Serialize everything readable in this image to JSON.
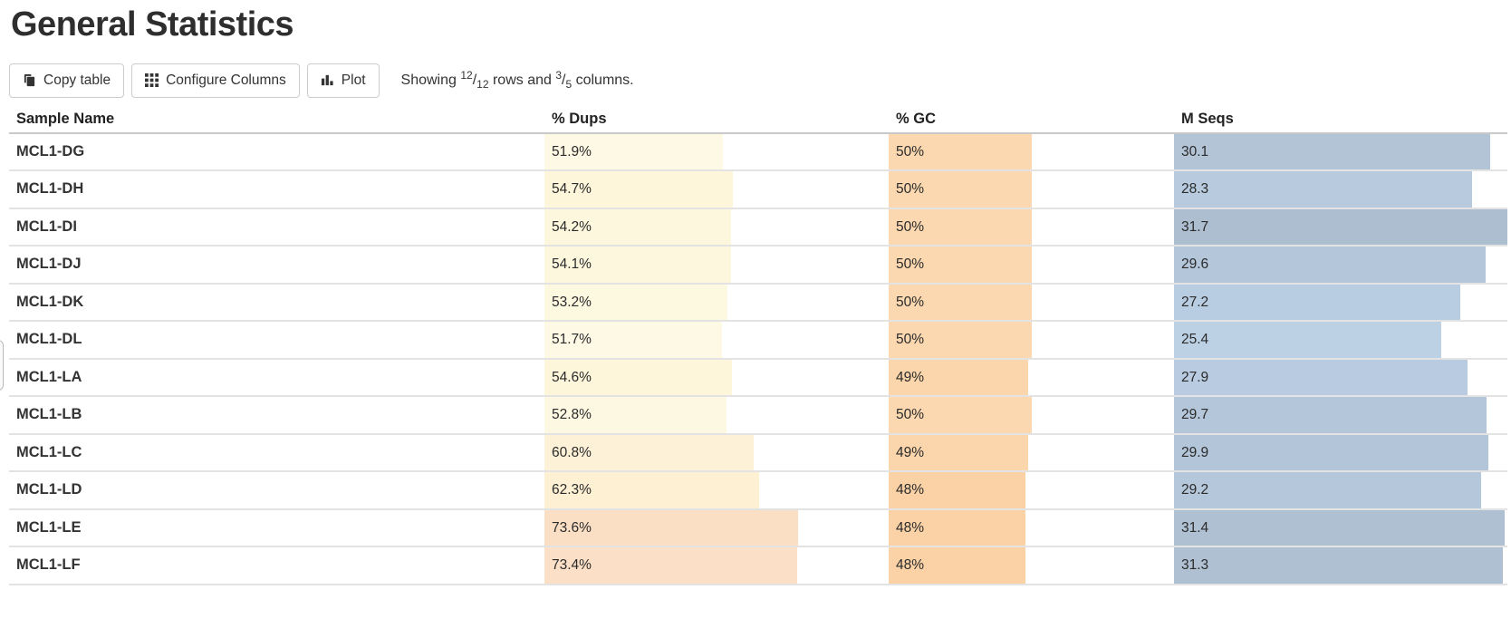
{
  "page": {
    "title": "General Statistics"
  },
  "toolbar": {
    "copy_label": "Copy table",
    "configure_label": "Configure Columns",
    "plot_label": "Plot",
    "showing": {
      "prefix": "Showing ",
      "rows_shown": "12",
      "rows_total": "12",
      "middle": " rows and ",
      "cols_shown": "3",
      "cols_total": "5",
      "suffix": " columns.",
      "slash": "/"
    }
  },
  "colors": {
    "dups_scale_low": "#fdf9e5",
    "dups_scale_high": "#fbdfc5",
    "gc_bar": "#fbd8b0",
    "seqs_bar": "#b3c4d7",
    "row_border": "#e3e3e3",
    "header_border": "#c9c9c9"
  },
  "table": {
    "columns": [
      "Sample Name",
      "% Dups",
      "% GC",
      "M Seqs"
    ],
    "seqs_axis_max": 31.7,
    "rows": [
      {
        "sample": "MCL1-DG",
        "dups": {
          "text": "51.9%",
          "pct": 51.9,
          "color": "#fdf9e4"
        },
        "gc": {
          "text": "50%",
          "pct": 50,
          "color": "#fbd8b0"
        },
        "seqs": {
          "text": "30.1",
          "pct": 94.95,
          "color": "#b3c4d7"
        }
      },
      {
        "sample": "MCL1-DH",
        "dups": {
          "text": "54.7%",
          "pct": 54.7,
          "color": "#fdf6db"
        },
        "gc": {
          "text": "50%",
          "pct": 50,
          "color": "#fbd8b0"
        },
        "seqs": {
          "text": "28.3",
          "pct": 89.27,
          "color": "#b7cade"
        }
      },
      {
        "sample": "MCL1-DI",
        "dups": {
          "text": "54.2%",
          "pct": 54.2,
          "color": "#fdf7dd"
        },
        "gc": {
          "text": "50%",
          "pct": 50,
          "color": "#fbd8b0"
        },
        "seqs": {
          "text": "31.7",
          "pct": 100,
          "color": "#aebed1"
        }
      },
      {
        "sample": "MCL1-DJ",
        "dups": {
          "text": "54.1%",
          "pct": 54.1,
          "color": "#fdf7dd"
        },
        "gc": {
          "text": "50%",
          "pct": 50,
          "color": "#fbd8b0"
        },
        "seqs": {
          "text": "29.6",
          "pct": 93.38,
          "color": "#b4c6da"
        }
      },
      {
        "sample": "MCL1-DK",
        "dups": {
          "text": "53.2%",
          "pct": 53.2,
          "color": "#fdf8e0"
        },
        "gc": {
          "text": "50%",
          "pct": 50,
          "color": "#fbd8b0"
        },
        "seqs": {
          "text": "27.2",
          "pct": 85.8,
          "color": "#b9cde2"
        }
      },
      {
        "sample": "MCL1-DL",
        "dups": {
          "text": "51.7%",
          "pct": 51.7,
          "color": "#fdf9e5"
        },
        "gc": {
          "text": "50%",
          "pct": 50,
          "color": "#fbd8b0"
        },
        "seqs": {
          "text": "25.4",
          "pct": 80.13,
          "color": "#bdd1e5"
        }
      },
      {
        "sample": "MCL1-LA",
        "dups": {
          "text": "54.6%",
          "pct": 54.6,
          "color": "#fdf6db"
        },
        "gc": {
          "text": "49%",
          "pct": 49,
          "color": "#fbd5ab"
        },
        "seqs": {
          "text": "27.9",
          "pct": 88.01,
          "color": "#b8cbe0"
        }
      },
      {
        "sample": "MCL1-LB",
        "dups": {
          "text": "52.8%",
          "pct": 52.8,
          "color": "#fdf8e1"
        },
        "gc": {
          "text": "50%",
          "pct": 50,
          "color": "#fbd8b0"
        },
        "seqs": {
          "text": "29.7",
          "pct": 93.69,
          "color": "#b4c6d9"
        }
      },
      {
        "sample": "MCL1-LC",
        "dups": {
          "text": "60.8%",
          "pct": 60.8,
          "color": "#fdf2d7"
        },
        "gc": {
          "text": "49%",
          "pct": 49,
          "color": "#fbd5ab"
        },
        "seqs": {
          "text": "29.9",
          "pct": 94.32,
          "color": "#b3c5d8"
        }
      },
      {
        "sample": "MCL1-LD",
        "dups": {
          "text": "62.3%",
          "pct": 62.3,
          "color": "#fdf0d3"
        },
        "gc": {
          "text": "48%",
          "pct": 48,
          "color": "#fad2a6"
        },
        "seqs": {
          "text": "29.2",
          "pct": 92.11,
          "color": "#b5c7db"
        }
      },
      {
        "sample": "MCL1-LE",
        "dups": {
          "text": "73.6%",
          "pct": 73.6,
          "color": "#fbdfc5"
        },
        "gc": {
          "text": "48%",
          "pct": 48,
          "color": "#fad2a6"
        },
        "seqs": {
          "text": "31.4",
          "pct": 99.05,
          "color": "#afc0d2"
        }
      },
      {
        "sample": "MCL1-LF",
        "dups": {
          "text": "73.4%",
          "pct": 73.4,
          "color": "#fbdfc6"
        },
        "gc": {
          "text": "48%",
          "pct": 48,
          "color": "#fad2a6"
        },
        "seqs": {
          "text": "31.3",
          "pct": 98.74,
          "color": "#afc0d3"
        }
      }
    ]
  }
}
